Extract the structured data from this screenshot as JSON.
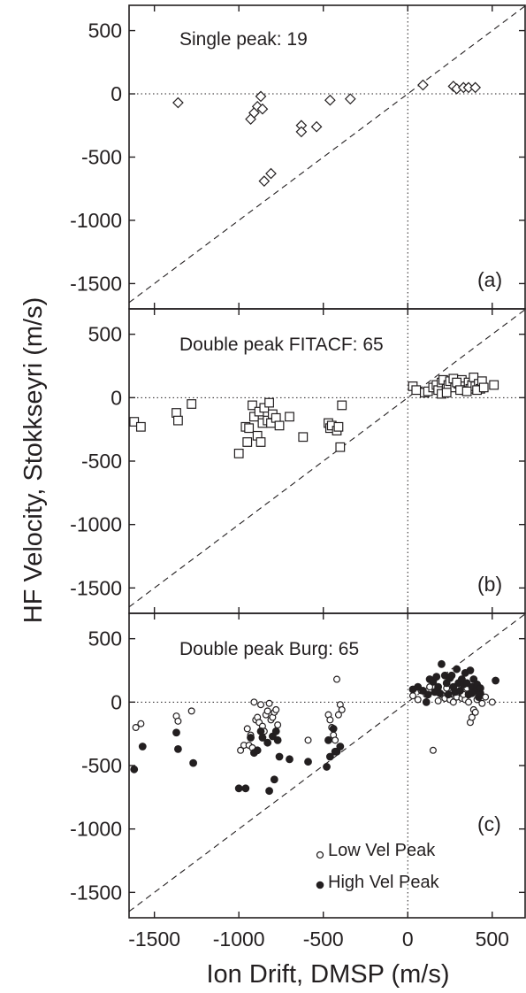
{
  "figure": {
    "xlabel": "Ion Drift, DMSP (m/s)",
    "ylabel": "HF Velocity, Stokkseyri (m/s)",
    "xlim": [
      -1650,
      700
    ],
    "ylim": [
      -1700,
      700
    ],
    "xticks": [
      -1500,
      -1000,
      -500,
      0,
      500
    ],
    "xtick_labels": [
      "-1500",
      "-1000",
      "-500",
      "0",
      "500"
    ],
    "yticks": [
      500,
      0,
      -500,
      -1000,
      -1500
    ],
    "ytick_labels": [
      "500",
      "0",
      "-500",
      "-1000",
      "-1500"
    ],
    "reference_lines": [
      "y = x (dashed)",
      "x = 0 (dotted)",
      "y = 0 (dotted)"
    ]
  },
  "chart_data": [
    {
      "type": "scatter",
      "panel": "(a)",
      "title": "Single peak: 19",
      "marker": "diamond",
      "series": [
        {
          "name": "",
          "points": [
            [
              -1360,
              -70
            ],
            [
              -930,
              -200
            ],
            [
              -910,
              -150
            ],
            [
              -890,
              -100
            ],
            [
              -870,
              -20
            ],
            [
              -860,
              -120
            ],
            [
              -850,
              -690
            ],
            [
              -810,
              -630
            ],
            [
              -630,
              -250
            ],
            [
              -630,
              -300
            ],
            [
              -540,
              -260
            ],
            [
              -460,
              -50
            ],
            [
              -340,
              -40
            ],
            [
              90,
              70
            ],
            [
              270,
              60
            ],
            [
              290,
              40
            ],
            [
              330,
              50
            ],
            [
              360,
              50
            ],
            [
              400,
              50
            ]
          ]
        }
      ]
    },
    {
      "type": "scatter",
      "panel": "(b)",
      "title": "Double peak FITACF: 65",
      "marker": "square",
      "series": [
        {
          "name": "",
          "points": [
            [
              -1620,
              -190
            ],
            [
              -1580,
              -230
            ],
            [
              -1370,
              -120
            ],
            [
              -1360,
              -180
            ],
            [
              -1280,
              -50
            ],
            [
              -1000,
              -440
            ],
            [
              -960,
              -230
            ],
            [
              -950,
              -350
            ],
            [
              -940,
              -240
            ],
            [
              -920,
              -60
            ],
            [
              -910,
              -150
            ],
            [
              -890,
              -300
            ],
            [
              -880,
              -110
            ],
            [
              -870,
              -350
            ],
            [
              -860,
              -200
            ],
            [
              -850,
              -80
            ],
            [
              -830,
              -180
            ],
            [
              -820,
              -40
            ],
            [
              -810,
              -200
            ],
            [
              -800,
              -130
            ],
            [
              -780,
              -160
            ],
            [
              -760,
              -220
            ],
            [
              -700,
              -150
            ],
            [
              -620,
              -310
            ],
            [
              -470,
              -200
            ],
            [
              -460,
              -240
            ],
            [
              -450,
              -220
            ],
            [
              -420,
              -260
            ],
            [
              -410,
              -230
            ],
            [
              -400,
              -390
            ],
            [
              -390,
              -60
            ],
            [
              30,
              90
            ],
            [
              50,
              60
            ],
            [
              100,
              40
            ],
            [
              120,
              50
            ],
            [
              150,
              80
            ],
            [
              170,
              100
            ],
            [
              180,
              60
            ],
            [
              200,
              120
            ],
            [
              210,
              140
            ],
            [
              230,
              70
            ],
            [
              240,
              100
            ],
            [
              250,
              130
            ],
            [
              270,
              150
            ],
            [
              280,
              80
            ],
            [
              300,
              110
            ],
            [
              320,
              140
            ],
            [
              330,
              90
            ],
            [
              340,
              60
            ],
            [
              360,
              120
            ],
            [
              370,
              70
            ],
            [
              380,
              100
            ],
            [
              390,
              160
            ],
            [
              400,
              90
            ],
            [
              420,
              110
            ],
            [
              430,
              70
            ],
            [
              440,
              130
            ],
            [
              200,
              30
            ],
            [
              230,
              40
            ],
            [
              290,
              120
            ],
            [
              310,
              60
            ],
            [
              350,
              50
            ],
            [
              410,
              60
            ],
            [
              450,
              80
            ],
            [
              510,
              100
            ]
          ]
        }
      ]
    },
    {
      "type": "scatter",
      "panel": "(c)",
      "title": "Double peak Burg: 65",
      "legend": {
        "position": "bottom-right",
        "entries": [
          "Low Vel Peak",
          "High Vel Peak"
        ]
      },
      "series": [
        {
          "name": "Low Vel Peak",
          "marker": "open-circle",
          "points": [
            [
              -1610,
              -200
            ],
            [
              -1580,
              -170
            ],
            [
              -1370,
              -110
            ],
            [
              -1360,
              -150
            ],
            [
              -1280,
              -70
            ],
            [
              -990,
              -380
            ],
            [
              -970,
              -340
            ],
            [
              -950,
              -210
            ],
            [
              -940,
              -340
            ],
            [
              -930,
              -260
            ],
            [
              -920,
              -360
            ],
            [
              -910,
              0
            ],
            [
              -900,
              -140
            ],
            [
              -890,
              -120
            ],
            [
              -880,
              -160
            ],
            [
              -870,
              -20
            ],
            [
              -860,
              -190
            ],
            [
              -850,
              -230
            ],
            [
              -840,
              -100
            ],
            [
              -830,
              -70
            ],
            [
              -820,
              -10
            ],
            [
              -810,
              -140
            ],
            [
              -800,
              -120
            ],
            [
              -790,
              -80
            ],
            [
              -780,
              -60
            ],
            [
              -770,
              -180
            ],
            [
              -590,
              -300
            ],
            [
              -470,
              -100
            ],
            [
              -460,
              -140
            ],
            [
              -450,
              -200
            ],
            [
              -440,
              -260
            ],
            [
              -430,
              -300
            ],
            [
              -420,
              180
            ],
            [
              -410,
              -100
            ],
            [
              -400,
              -20
            ],
            [
              -390,
              -60
            ],
            [
              30,
              50
            ],
            [
              60,
              20
            ],
            [
              80,
              90
            ],
            [
              110,
              60
            ],
            [
              150,
              -380
            ],
            [
              180,
              10
            ],
            [
              200,
              60
            ],
            [
              220,
              30
            ],
            [
              250,
              20
            ],
            [
              270,
              0
            ],
            [
              290,
              40
            ],
            [
              320,
              30
            ],
            [
              340,
              20
            ],
            [
              360,
              0
            ],
            [
              370,
              -160
            ],
            [
              380,
              -120
            ],
            [
              390,
              -60
            ],
            [
              400,
              -80
            ],
            [
              410,
              20
            ],
            [
              440,
              -10
            ],
            [
              460,
              40
            ],
            [
              500,
              0
            ],
            [
              130,
              120
            ],
            [
              170,
              90
            ],
            [
              230,
              110
            ],
            [
              260,
              70
            ],
            [
              300,
              80
            ],
            [
              330,
              60
            ],
            [
              350,
              110
            ]
          ]
        },
        {
          "name": "High Vel Peak",
          "marker": "filled-circle",
          "points": [
            [
              -1620,
              -530
            ],
            [
              -1570,
              -350
            ],
            [
              -1370,
              -240
            ],
            [
              -1360,
              -370
            ],
            [
              -1270,
              -480
            ],
            [
              -1000,
              -680
            ],
            [
              -960,
              -680
            ],
            [
              -930,
              -280
            ],
            [
              -910,
              -400
            ],
            [
              -890,
              -380
            ],
            [
              -870,
              -230
            ],
            [
              -860,
              -280
            ],
            [
              -830,
              -320
            ],
            [
              -820,
              -700
            ],
            [
              -800,
              -270
            ],
            [
              -790,
              -610
            ],
            [
              -780,
              -230
            ],
            [
              -770,
              -300
            ],
            [
              -760,
              -430
            ],
            [
              -700,
              -450
            ],
            [
              -590,
              -470
            ],
            [
              -480,
              -510
            ],
            [
              -470,
              -300
            ],
            [
              -460,
              -430
            ],
            [
              -440,
              -210
            ],
            [
              -430,
              -390
            ],
            [
              -420,
              -390
            ],
            [
              -400,
              -350
            ],
            [
              30,
              100
            ],
            [
              60,
              120
            ],
            [
              90,
              90
            ],
            [
              130,
              180
            ],
            [
              150,
              160
            ],
            [
              160,
              80
            ],
            [
              170,
              200
            ],
            [
              190,
              70
            ],
            [
              200,
              300
            ],
            [
              220,
              210
            ],
            [
              230,
              150
            ],
            [
              250,
              190
            ],
            [
              270,
              120
            ],
            [
              280,
              80
            ],
            [
              290,
              260
            ],
            [
              300,
              150
            ],
            [
              310,
              90
            ],
            [
              320,
              180
            ],
            [
              330,
              140
            ],
            [
              340,
              230
            ],
            [
              360,
              60
            ],
            [
              370,
              250
            ],
            [
              380,
              120
            ],
            [
              390,
              180
            ],
            [
              400,
              90
            ],
            [
              410,
              140
            ],
            [
              420,
              40
            ],
            [
              430,
              70
            ],
            [
              520,
              170
            ],
            [
              120,
              60
            ],
            [
              180,
              120
            ],
            [
              240,
              60
            ],
            [
              260,
              210
            ],
            [
              350,
              150
            ],
            [
              380,
              70
            ],
            [
              430,
              110
            ],
            [
              110,
              0
            ]
          ]
        }
      ]
    }
  ]
}
